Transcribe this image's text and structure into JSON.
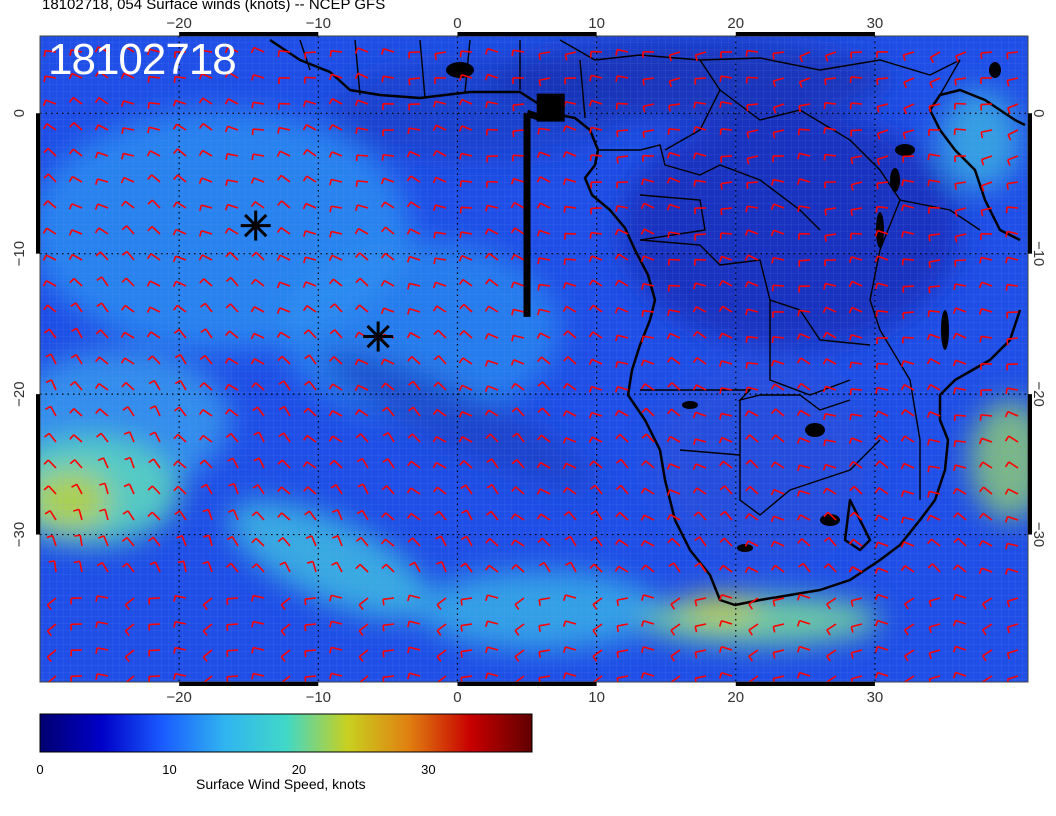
{
  "header": {
    "title": "18102718, 054 Surface winds (knots) -- NCEP GFS",
    "timestamp": "18102718"
  },
  "map": {
    "lon_min": -30,
    "lon_max": 41,
    "lat_min": -40.5,
    "lat_max": 5.5,
    "lon_ticks": [
      {
        "value": -20,
        "label": "−20"
      },
      {
        "value": -10,
        "label": "−10"
      },
      {
        "value": 0,
        "label": "0"
      },
      {
        "value": 10,
        "label": "10"
      },
      {
        "value": 20,
        "label": "20"
      },
      {
        "value": 30,
        "label": "30"
      }
    ],
    "lat_ticks": [
      {
        "value": 0,
        "label": "0"
      },
      {
        "value": -10,
        "label": "−10"
      },
      {
        "value": -20,
        "label": "−20"
      },
      {
        "value": -30,
        "label": "−30"
      }
    ],
    "markers": [
      {
        "type": "asterisk",
        "lon": -14.5,
        "lat": -8.0
      },
      {
        "type": "asterisk",
        "lon": -5.7,
        "lat": -15.9
      },
      {
        "type": "station-square",
        "lon": 6.7,
        "lat": 0.4
      },
      {
        "type": "flight-track",
        "lon": 5.0,
        "lat_from": 0.0,
        "lat_to": -14.5
      }
    ],
    "barb_color": "#ff0000",
    "coast_color": "#000000"
  },
  "colorbar": {
    "label": "Surface Wind Speed, knots",
    "min": 0,
    "max": 38,
    "ticks": [
      {
        "value": 0,
        "label": "0"
      },
      {
        "value": 10,
        "label": "10"
      },
      {
        "value": 20,
        "label": "20"
      },
      {
        "value": 30,
        "label": "30"
      }
    ],
    "stops": [
      "#000070",
      "#0000c8",
      "#1a5cff",
      "#30b4f0",
      "#40d8c8",
      "#c8d020",
      "#e08010",
      "#c80000",
      "#600000"
    ]
  }
}
